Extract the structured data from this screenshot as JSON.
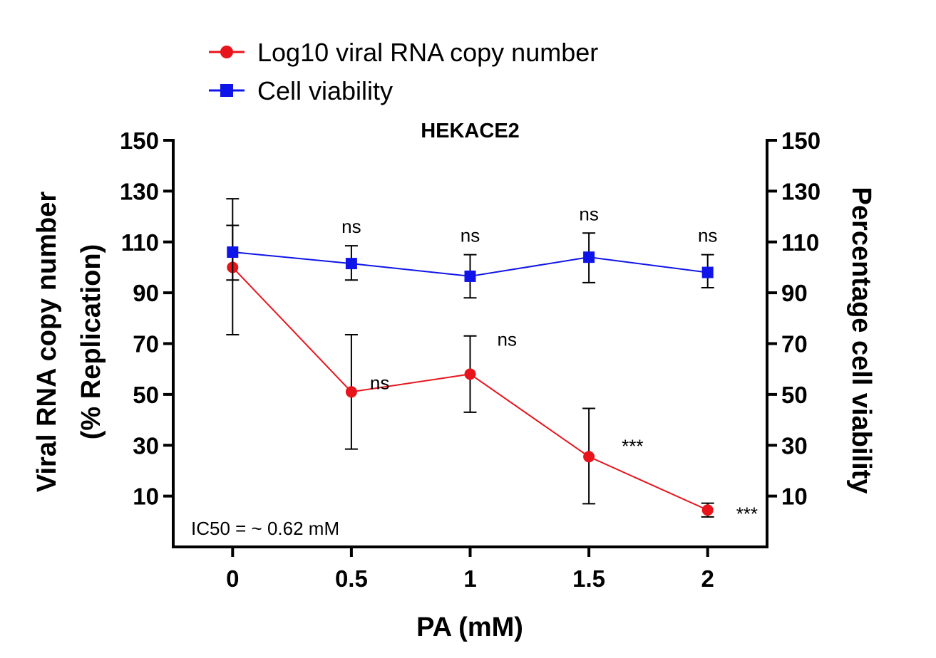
{
  "chart_data": {
    "type": "line",
    "title": "HEKACE2",
    "xlabel": "PA (mM)",
    "ylabel_left": "Viral RNA copy number (% Replication)",
    "ylabel_left_lines": [
      "Viral RNA copy number",
      "(% Replication)"
    ],
    "ylabel_right": "Percentage cell viability",
    "x": [
      0,
      0.5,
      1,
      1.5,
      2
    ],
    "x_tick_labels": [
      "0",
      "0.5",
      "1",
      "1.5",
      "2"
    ],
    "xlim": [
      -0.25,
      2.25
    ],
    "ylim": [
      -10,
      150
    ],
    "y_ticks": [
      10,
      30,
      50,
      70,
      90,
      110,
      130,
      150
    ],
    "grid": false,
    "legend_position": "top-left",
    "series": [
      {
        "name": "Log10 viral RNA copy number",
        "axis": "left",
        "color": "#e8141c",
        "marker": "circle",
        "values": [
          100,
          51,
          58,
          25.5,
          4.5
        ],
        "error_low": [
          73.5,
          28.5,
          43,
          7,
          1.8
        ],
        "error_high": [
          116.5,
          73.5,
          73,
          44.5,
          7.2
        ],
        "annotations": [
          "",
          "ns",
          "ns",
          "***",
          "***"
        ]
      },
      {
        "name": "Cell viability",
        "axis": "right",
        "color": "#0f14e8",
        "marker": "square",
        "values": [
          106,
          101.5,
          96.5,
          104,
          98
        ],
        "error_low": [
          95,
          95,
          88,
          94,
          92
        ],
        "error_high": [
          127,
          108.5,
          105,
          113.5,
          105
        ],
        "annotations": [
          "",
          "ns",
          "ns",
          "ns",
          "ns"
        ]
      }
    ],
    "annotation_text": "IC50 = ~ 0.62 mM"
  }
}
